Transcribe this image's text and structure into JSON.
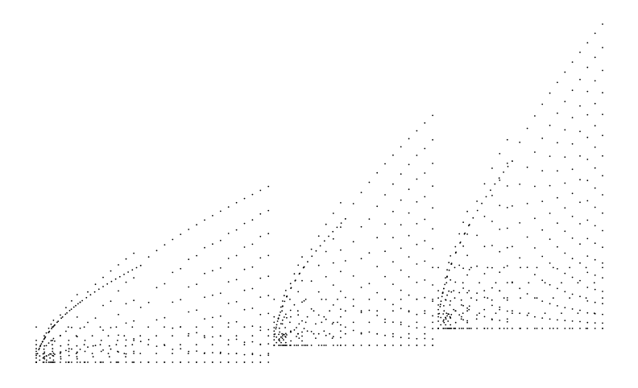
{
  "chart_data": {
    "type": "scatter",
    "title": "",
    "xlabel": "",
    "ylabel": "",
    "grid": false,
    "legend": "none",
    "axes_visible": false,
    "colors": {
      "point": "#000000",
      "background": "#ffffff"
    },
    "series": [
      {
        "description_of_shape": "three self-similar fan-shaped blocks of dots; each block rises as a convex envelope from lower-left to upper-right, with nested sub-fans repeating the pattern at smaller scale",
        "blocks": [
          {
            "x_start": 0.0,
            "x_end": 0.41,
            "envelope_bottom": 0.0,
            "envelope_top": 0.52
          },
          {
            "x_start": 0.42,
            "x_end": 0.7,
            "envelope_bottom": 0.05,
            "envelope_top": 0.73
          },
          {
            "x_start": 0.71,
            "x_end": 1.0,
            "envelope_bottom": 0.1,
            "envelope_top": 1.0
          }
        ]
      }
    ]
  }
}
